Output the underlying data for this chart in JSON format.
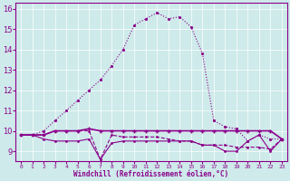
{
  "xlabel": "Windchill (Refroidissement éolien,°C)",
  "bg_color": "#ceeaea",
  "line_color": "#8b008b",
  "hours": [
    0,
    1,
    2,
    3,
    4,
    5,
    6,
    7,
    8,
    9,
    10,
    11,
    12,
    13,
    14,
    15,
    16,
    17,
    18,
    19,
    20,
    21,
    22,
    23
  ],
  "series_dot": [
    9.8,
    9.8,
    10.0,
    10.5,
    11.0,
    11.5,
    12.0,
    12.5,
    13.2,
    14.0,
    15.2,
    15.5,
    15.8,
    15.5,
    15.6,
    15.1,
    13.8,
    10.5,
    10.2,
    10.1,
    9.5,
    9.8,
    9.6,
    9.6
  ],
  "series_solid1": [
    9.8,
    9.8,
    9.8,
    10.0,
    10.0,
    10.0,
    10.1,
    10.0,
    10.0,
    10.0,
    10.0,
    10.0,
    10.0,
    10.0,
    10.0,
    10.0,
    10.0,
    10.0,
    10.0,
    10.0,
    10.0,
    10.0,
    10.0,
    9.6
  ],
  "series_solid2": [
    9.8,
    9.8,
    9.6,
    9.5,
    9.5,
    9.5,
    9.6,
    8.6,
    9.4,
    9.5,
    9.5,
    9.5,
    9.5,
    9.5,
    9.5,
    9.5,
    9.3,
    9.3,
    9.0,
    9.0,
    9.5,
    9.8,
    9.0,
    9.6
  ],
  "series_solid3": [
    9.8,
    9.8,
    9.8,
    10.0,
    10.0,
    10.0,
    10.0,
    8.6,
    9.8,
    9.7,
    9.7,
    9.7,
    9.7,
    9.6,
    9.5,
    9.5,
    9.3,
    9.3,
    9.3,
    9.2,
    9.2,
    9.2,
    9.1,
    9.6
  ],
  "ylim": [
    8.5,
    16.3
  ],
  "yticks": [
    9,
    10,
    11,
    12,
    13,
    14,
    15,
    16
  ]
}
